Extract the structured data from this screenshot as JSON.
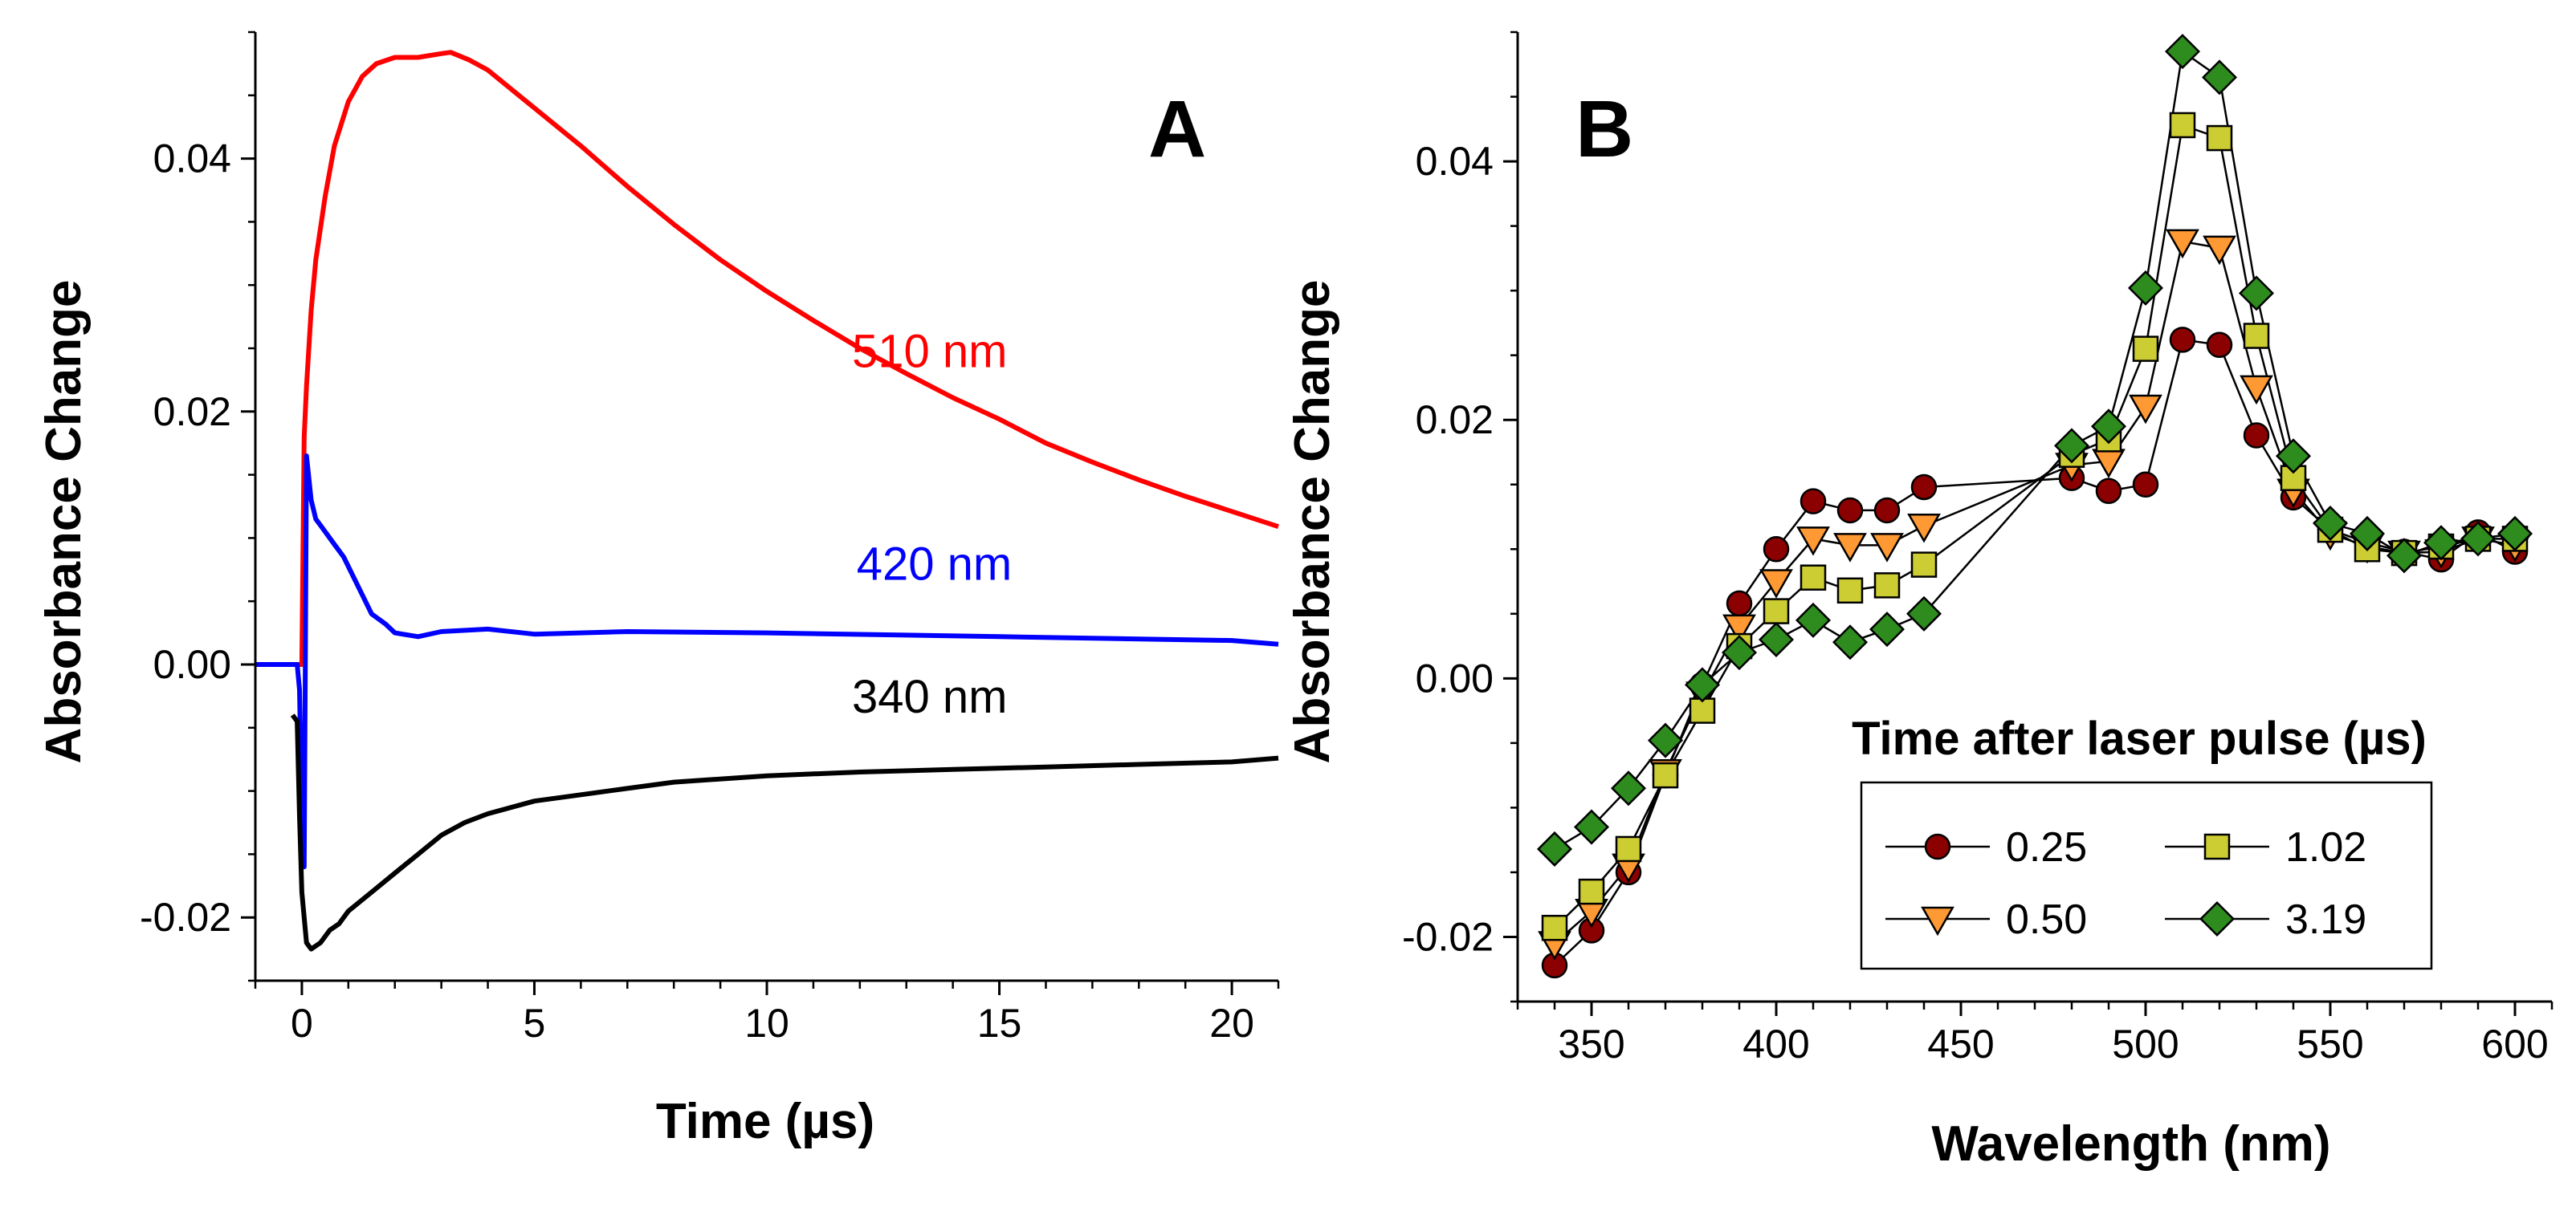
{
  "chart_data": [
    {
      "panel": "A",
      "type": "line",
      "title": "",
      "xlabel": "Time (µs)",
      "ylabel": "Absorbance Change",
      "xlim": [
        -1,
        21
      ],
      "ylim": [
        -0.025,
        0.05
      ],
      "xticks": [
        0,
        5,
        10,
        15,
        20
      ],
      "xtick_labels": [
        "0",
        "5",
        "10",
        "15",
        "20"
      ],
      "yticks": [
        -0.02,
        0.0,
        0.02,
        0.04
      ],
      "ytick_labels": [
        "-0.02",
        "0.00",
        "0.02",
        "0.04"
      ],
      "grid": false,
      "series": [
        {
          "name": "510 nm",
          "color": "#ff0000",
          "x": [
            -1,
            0,
            0.05,
            0.1,
            0.2,
            0.3,
            0.5,
            0.7,
            1.0,
            1.3,
            1.6,
            2.0,
            2.5,
            3.0,
            3.2,
            3.6,
            4.0,
            5.0,
            6.0,
            7.0,
            8.0,
            9.0,
            10.0,
            11.0,
            12.0,
            13.0,
            14.0,
            15.0,
            16.0,
            17.0,
            18.0,
            19.0,
            20.0,
            21.0
          ],
          "y": [
            0,
            0,
            0.018,
            0.022,
            0.028,
            0.032,
            0.037,
            0.041,
            0.0445,
            0.0465,
            0.0475,
            0.048,
            0.048,
            0.0483,
            0.0484,
            0.0478,
            0.047,
            0.044,
            0.041,
            0.0378,
            0.0348,
            0.032,
            0.0295,
            0.0272,
            0.025,
            0.023,
            0.0211,
            0.0194,
            0.0175,
            0.016,
            0.0146,
            0.0133,
            0.0121,
            0.0109
          ]
        },
        {
          "name": "420 nm",
          "color": "#0000ff",
          "x": [
            -1,
            -0.1,
            -0.05,
            0,
            0.05,
            0.1,
            0.2,
            0.3,
            0.4,
            0.5,
            0.7,
            0.9,
            1.1,
            1.3,
            1.5,
            1.8,
            2.0,
            2.5,
            3.0,
            4.0,
            5.0,
            7.0,
            10.0,
            15.0,
            20.0,
            21.0
          ],
          "y": [
            0,
            0,
            -0.002,
            -0.012,
            -0.016,
            0.0165,
            0.013,
            0.0115,
            0.011,
            0.0105,
            0.0095,
            0.0085,
            0.007,
            0.0055,
            0.004,
            0.0032,
            0.0025,
            0.0022,
            0.0026,
            0.0028,
            0.0024,
            0.0026,
            0.0025,
            0.0022,
            0.0019,
            0.0016
          ]
        },
        {
          "name": "340 nm",
          "color": "#000000",
          "x": [
            -0.2,
            -0.1,
            -0.05,
            0.0,
            0.1,
            0.2,
            0.4,
            0.6,
            0.8,
            1.0,
            1.5,
            2.0,
            2.5,
            3.0,
            3.5,
            4.0,
            5.0,
            6.0,
            7.0,
            8.0,
            10.0,
            12.0,
            14.0,
            16.0,
            18.0,
            20.0,
            21.0
          ],
          "y": [
            -0.004,
            -0.0045,
            -0.012,
            -0.018,
            -0.022,
            -0.0225,
            -0.022,
            -0.021,
            -0.0205,
            -0.0195,
            -0.018,
            -0.0165,
            -0.015,
            -0.0135,
            -0.0125,
            -0.0118,
            -0.0108,
            -0.0103,
            -0.0098,
            -0.0093,
            -0.0088,
            -0.0085,
            -0.0083,
            -0.0081,
            -0.0079,
            -0.0077,
            -0.0074
          ]
        }
      ],
      "annotations": [
        {
          "text": "510 nm",
          "x": 13.5,
          "y": 0.0235,
          "color": "#ff0000"
        },
        {
          "text": "420 nm",
          "x": 13.6,
          "y": 0.0067,
          "color": "#0000ff"
        },
        {
          "text": "340 nm",
          "x": 13.5,
          "y": -0.0038,
          "color": "#000000"
        }
      ]
    },
    {
      "panel": "B",
      "type": "line",
      "title": "",
      "xlabel": "Wavelength (nm)",
      "ylabel": "Absorbance Change",
      "xlim": [
        330,
        610
      ],
      "ylim": [
        -0.025,
        0.05
      ],
      "xticks": [
        350,
        400,
        450,
        500,
        550,
        600
      ],
      "xtick_labels": [
        "350",
        "400",
        "450",
        "500",
        "550",
        "600"
      ],
      "yticks": [
        -0.02,
        0.0,
        0.02,
        0.04
      ],
      "ytick_labels": [
        "-0.02",
        "0.00",
        "0.02",
        "0.04"
      ],
      "grid": false,
      "legend_title": "Time after laser pulse (µs)",
      "legend_position": "lower-right",
      "x": [
        340,
        350,
        360,
        370,
        380,
        390,
        400,
        410,
        420,
        430,
        440,
        480,
        490,
        500,
        510,
        520,
        530,
        540,
        550,
        560,
        570,
        580,
        590,
        600
      ],
      "series": [
        {
          "name": "0.25",
          "marker": "circle",
          "color": "#8b0000",
          "y": [
            -0.0222,
            -0.0195,
            -0.015,
            -0.0075,
            -0.0005,
            0.0058,
            0.01,
            0.0137,
            0.013,
            0.013,
            0.0148,
            0.0155,
            0.0145,
            0.015,
            0.0262,
            0.0258,
            0.0188,
            0.014,
            0.0115,
            0.0105,
            0.0098,
            0.0092,
            0.0113,
            0.0098
          ]
        },
        {
          "name": "0.50",
          "marker": "triangle-down",
          "color": "#ff9933",
          "y": [
            -0.0205,
            -0.018,
            -0.0145,
            -0.0072,
            -0.0012,
            0.004,
            0.0075,
            0.0108,
            0.0103,
            0.0103,
            0.0118,
            0.0165,
            0.0168,
            0.021,
            0.0338,
            0.0333,
            0.0225,
            0.0145,
            0.0112,
            0.0102,
            0.0097,
            0.0098,
            0.0108,
            0.0103
          ]
        },
        {
          "name": "1.02",
          "marker": "square",
          "color": "#cccc33",
          "y": [
            -0.0193,
            -0.0165,
            -0.0132,
            -0.0075,
            -0.0025,
            0.0025,
            0.0052,
            0.0078,
            0.0068,
            0.0072,
            0.0088,
            0.0173,
            0.0185,
            0.0255,
            0.0428,
            0.0418,
            0.0265,
            0.0155,
            0.0115,
            0.01,
            0.0097,
            0.0102,
            0.0108,
            0.0108
          ]
        },
        {
          "name": "3.19",
          "marker": "diamond",
          "color": "#2e8b1e",
          "y": [
            -0.0132,
            -0.0115,
            -0.0085,
            -0.0048,
            -0.0005,
            0.002,
            0.003,
            0.0045,
            0.0028,
            0.0038,
            0.005,
            0.018,
            0.0195,
            0.0302,
            0.0485,
            0.0465,
            0.0298,
            0.0172,
            0.012,
            0.0112,
            0.0095,
            0.0105,
            0.0108,
            0.0112
          ]
        }
      ]
    }
  ]
}
